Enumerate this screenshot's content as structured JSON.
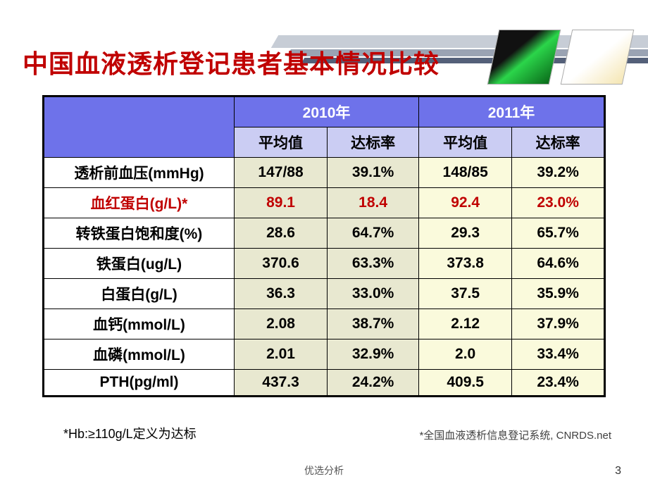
{
  "title": "中国血液透析登记患者基本情况比较",
  "years": {
    "y1": "2010年",
    "y2": "2011年"
  },
  "subheaders": {
    "avg": "平均值",
    "rate": "达标率"
  },
  "rows": [
    {
      "label": "透析前血压(mmHg)",
      "hl": false,
      "y1_avg": "147/88",
      "y1_rate": "39.1%",
      "y2_avg": "148/85",
      "y2_rate": "39.2%"
    },
    {
      "label": "血红蛋白(g/L)*",
      "hl": true,
      "y1_avg": "89.1",
      "y1_rate": "18.4",
      "y2_avg": "92.4",
      "y2_rate": "23.0%"
    },
    {
      "label": "转铁蛋白饱和度(%)",
      "hl": false,
      "y1_avg": "28.6",
      "y1_rate": "64.7%",
      "y2_avg": "29.3",
      "y2_rate": "65.7%"
    },
    {
      "label": "铁蛋白(ug/L)",
      "hl": false,
      "y1_avg": "370.6",
      "y1_rate": "63.3%",
      "y2_avg": "373.8",
      "y2_rate": "64.6%"
    },
    {
      "label": "白蛋白(g/L)",
      "hl": false,
      "y1_avg": "36.3",
      "y1_rate": "33.0%",
      "y2_avg": "37.5",
      "y2_rate": "35.9%"
    },
    {
      "label": "血钙(mmol/L)",
      "hl": false,
      "y1_avg": "2.08",
      "y1_rate": "38.7%",
      "y2_avg": "2.12",
      "y2_rate": "37.9%"
    },
    {
      "label": "血磷(mmol/L)",
      "hl": false,
      "y1_avg": "2.01",
      "y1_rate": "32.9%",
      "y2_avg": "2.0",
      "y2_rate": "33.4%"
    },
    {
      "label": "PTH(pg/ml)",
      "hl": false,
      "y1_avg": "437.3",
      "y1_rate": "24.2%",
      "y2_avg": "409.5",
      "y2_rate": "23.4%"
    }
  ],
  "footnote_left": "*Hb:≥110g/L定义为达标",
  "footnote_right": "*全国血液透析信息登记系统, CNRDS.net",
  "footer_center": "优选分析",
  "page_num": "3",
  "colors": {
    "title": "#c00000",
    "year_header_bg": "#6e72ea",
    "sub_header_bg": "#cbcdf3",
    "col_2010_bg": "#e8e8d0",
    "col_2011_bg": "#fafadc",
    "highlight": "#c00000"
  }
}
